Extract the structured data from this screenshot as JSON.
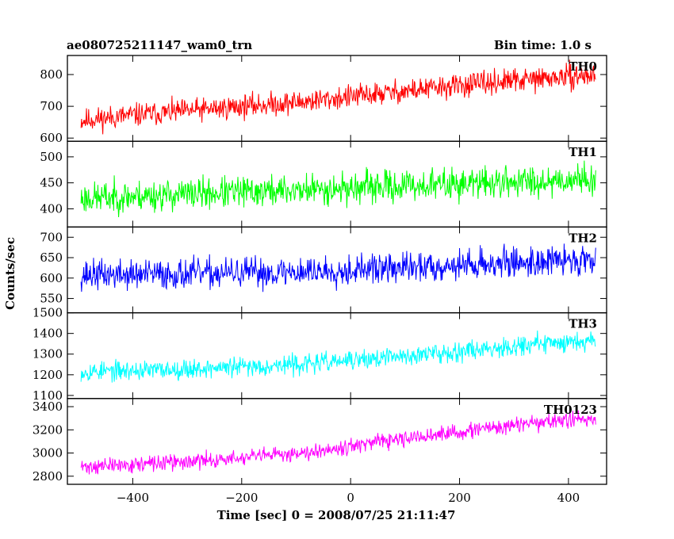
{
  "header": {
    "title": "ae080725211147_wam0_trn",
    "bin_time": "Bin time: 1.0 s"
  },
  "axes": {
    "xlabel": "Time [sec] 0 = 2008/07/25 21:11:47",
    "ylabel": "Counts/sec"
  },
  "chart_data": {
    "type": "line",
    "title": "ae080725211147_wam0_trn",
    "subtitle": "Bin time: 1.0 s",
    "xlabel": "Time [sec] 0 = 2008/07/25 21:11:47",
    "ylabel": "Counts/sec",
    "xlim": [
      -520,
      470
    ],
    "x_ticks": [
      -400,
      -200,
      0,
      200,
      400
    ],
    "x_range_data": [
      -495,
      450
    ],
    "legend": "per-panel label, top-right",
    "grid": false,
    "panels": [
      {
        "name": "TH0",
        "color": "#ff0000",
        "ylim": [
          590,
          860
        ],
        "y_ticks": [
          600,
          700,
          800
        ],
        "trend": [
          [
            -495,
            655
          ],
          [
            -400,
            672
          ],
          [
            -300,
            685
          ],
          [
            -200,
            700
          ],
          [
            -100,
            712
          ],
          [
            0,
            730
          ],
          [
            100,
            748
          ],
          [
            200,
            765
          ],
          [
            300,
            780
          ],
          [
            400,
            793
          ],
          [
            450,
            798
          ]
        ],
        "noise_halfwidth": 55,
        "seed": 11
      },
      {
        "name": "TH1",
        "color": "#00ff00",
        "ylim": [
          365,
          530
        ],
        "y_ticks": [
          400,
          450,
          500
        ],
        "trend": [
          [
            -495,
            420
          ],
          [
            -400,
            424
          ],
          [
            -300,
            428
          ],
          [
            -200,
            432
          ],
          [
            -100,
            436
          ],
          [
            0,
            440
          ],
          [
            100,
            444
          ],
          [
            200,
            448
          ],
          [
            300,
            452
          ],
          [
            400,
            456
          ],
          [
            450,
            458
          ]
        ],
        "noise_halfwidth": 45,
        "seed": 23
      },
      {
        "name": "TH2",
        "color": "#0000ff",
        "ylim": [
          515,
          725
        ],
        "y_ticks": [
          550,
          600,
          650,
          700
        ],
        "trend": [
          [
            -495,
            608
          ],
          [
            -400,
            608
          ],
          [
            -300,
            610
          ],
          [
            -200,
            612
          ],
          [
            -100,
            615
          ],
          [
            0,
            620
          ],
          [
            100,
            625
          ],
          [
            200,
            632
          ],
          [
            300,
            638
          ],
          [
            400,
            643
          ],
          [
            450,
            646
          ]
        ],
        "noise_halfwidth": 55,
        "seed": 37
      },
      {
        "name": "TH3",
        "color": "#00ffff",
        "ylim": [
          1085,
          1500
        ],
        "y_ticks": [
          1100,
          1200,
          1300,
          1400,
          1500
        ],
        "trend": [
          [
            -495,
            1215
          ],
          [
            -400,
            1220
          ],
          [
            -300,
            1228
          ],
          [
            -200,
            1238
          ],
          [
            -100,
            1250
          ],
          [
            0,
            1268
          ],
          [
            100,
            1290
          ],
          [
            200,
            1315
          ],
          [
            300,
            1340
          ],
          [
            400,
            1360
          ],
          [
            450,
            1370
          ]
        ],
        "noise_halfwidth": 70,
        "seed": 53
      },
      {
        "name": "TH0123",
        "color": "#ff00ff",
        "ylim": [
          2730,
          3470
        ],
        "y_ticks": [
          2800,
          3000,
          3200,
          3400
        ],
        "trend": [
          [
            -495,
            2880
          ],
          [
            -400,
            2900
          ],
          [
            -300,
            2925
          ],
          [
            -200,
            2955
          ],
          [
            -100,
            3000
          ],
          [
            0,
            3060
          ],
          [
            100,
            3120
          ],
          [
            200,
            3180
          ],
          [
            300,
            3240
          ],
          [
            400,
            3285
          ],
          [
            450,
            3300
          ]
        ],
        "noise_halfwidth": 100,
        "seed": 71
      }
    ]
  }
}
